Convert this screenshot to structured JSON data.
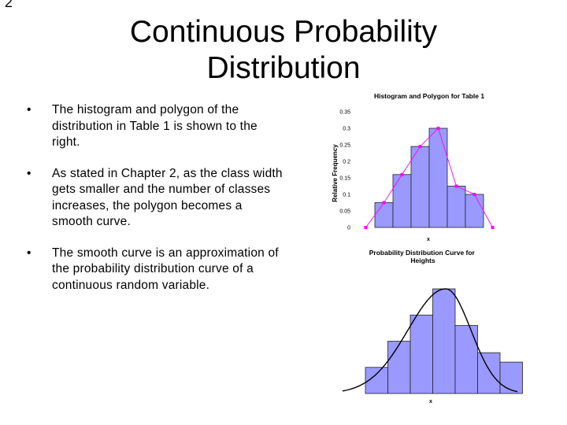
{
  "slide": {
    "number": "2",
    "title_line1": "Continuous Probability",
    "title_line2": "Distribution",
    "bullet_marker": "•",
    "bullets": [
      "The histogram and polygon of the distribution in Table 1 is shown to the right.",
      "As stated in Chapter 2, as the class width gets smaller and the number of classes increases, the polygon becomes a smooth curve.",
      "The smooth curve is an approximation of the probability distribution curve of a continuous random variable."
    ]
  },
  "chart_data": [
    {
      "type": "bar",
      "title": "Histogram and Polygon for Table 1",
      "xlabel": "x",
      "ylabel": "Relative Frequency",
      "ylim": [
        0,
        0.35
      ],
      "y_ticks": [
        "0",
        "0.05",
        "0.1",
        "0.15",
        "0.2",
        "0.25",
        "0.3",
        "0.35"
      ],
      "grid": false,
      "bar_color": "#9999ff",
      "bar_values": [
        0.075,
        0.16,
        0.245,
        0.3,
        0.125,
        0.1
      ],
      "polygon_color": "#ff00ff",
      "polygon_values": [
        0,
        0.075,
        0.16,
        0.245,
        0.3,
        0.125,
        0.1,
        0
      ]
    },
    {
      "type": "bar",
      "title": "Probability Distribution Curve for Heights",
      "xlabel": "x",
      "grid": false,
      "bar_color": "#9999ff",
      "bar_values": [
        0.25,
        0.5,
        0.75,
        1.0,
        0.65,
        0.39,
        0.3
      ],
      "curve_color": "#000000"
    }
  ]
}
